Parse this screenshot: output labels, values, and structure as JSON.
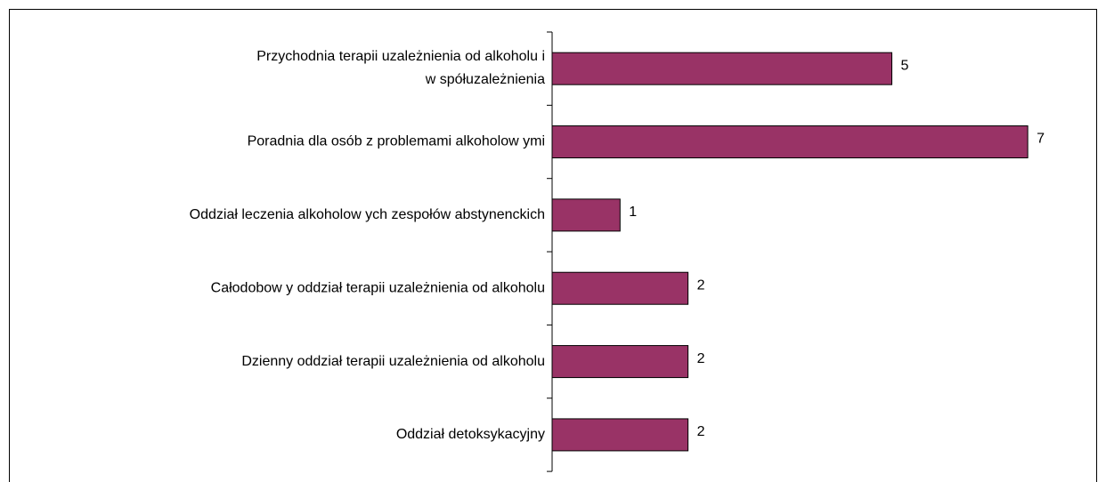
{
  "chart_data": {
    "type": "bar",
    "orientation": "horizontal",
    "categories": [
      "Przychodnia terapii uzależnienia od alkoholu i\nw spółuzależnienia",
      "Poradnia dla osób z problemami alkoholow ymi",
      "Oddział leczenia alkoholow ych zespołów  abstynenckich",
      "Całodobow y oddział terapii uzależnienia od alkoholu",
      "Dzienny oddział terapii uzależnienia od alkoholu",
      "Oddział detoksykacyjny"
    ],
    "values": [
      5,
      7,
      1,
      2,
      2,
      2
    ],
    "color": "#993366"
  }
}
